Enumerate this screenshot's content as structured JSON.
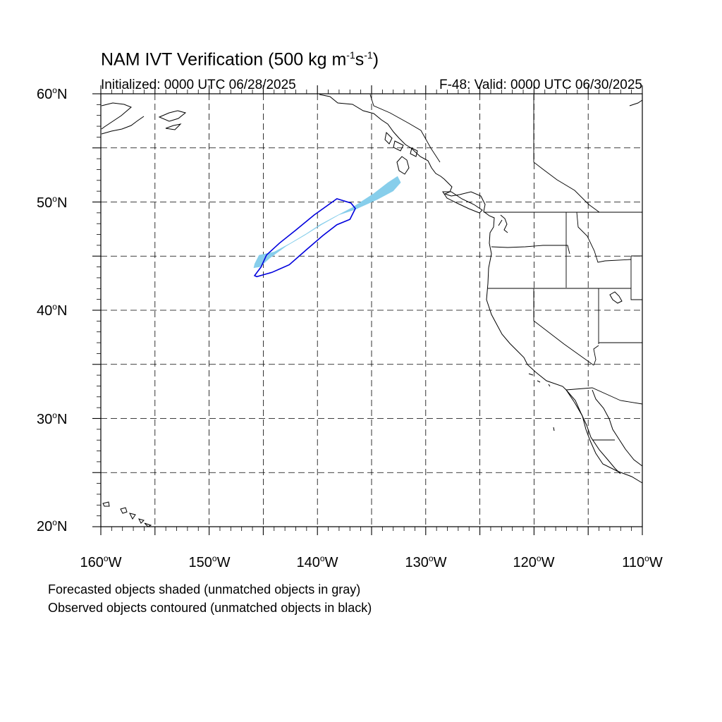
{
  "title": {
    "main": "NAM IVT Verification (500 kg m",
    "sup1": "-1",
    "mid": "s",
    "sup2": "-1",
    "end": ")"
  },
  "initialized": "Initialized: 0000 UTC 06/28/2025",
  "valid": "F-48: Valid: 0000 UTC 06/30/2025",
  "degree_symbol": "o",
  "lat_labels": [
    {
      "num": "60",
      "hem": "N"
    },
    {
      "num": "50",
      "hem": "N"
    },
    {
      "num": "40",
      "hem": "N"
    },
    {
      "num": "30",
      "hem": "N"
    },
    {
      "num": "20",
      "hem": "N"
    }
  ],
  "lon_labels": [
    {
      "num": "160",
      "hem": "W"
    },
    {
      "num": "150",
      "hem": "W"
    },
    {
      "num": "140",
      "hem": "W"
    },
    {
      "num": "130",
      "hem": "W"
    },
    {
      "num": "120",
      "hem": "W"
    },
    {
      "num": "110",
      "hem": "W"
    }
  ],
  "footnotes": [
    "Forecasted objects shaded (unmatched objects in gray)",
    "Observed objects contoured (unmatched objects in black)"
  ],
  "colors": {
    "forecast_fill": "#87ceeb",
    "observed_contour": "#0000dd",
    "coastline": "#000000",
    "grid": "#000000"
  },
  "map_extent": {
    "lon": [
      -160,
      -110
    ],
    "lat": [
      20,
      60
    ]
  },
  "grid": {
    "lon_step": 5,
    "lat_step": 5,
    "style": "dashed"
  },
  "forecast_object": {
    "lonlat": [
      [
        -145.8,
        44.3
      ],
      [
        -145.4,
        45.1
      ],
      [
        -144.0,
        45.4
      ],
      [
        -142.5,
        46.2
      ],
      [
        -141.0,
        47.1
      ],
      [
        -139.8,
        47.9
      ],
      [
        -138.5,
        48.6
      ],
      [
        -136.8,
        49.5
      ],
      [
        -134.8,
        50.8
      ],
      [
        -133.5,
        51.8
      ],
      [
        -132.6,
        52.4
      ],
      [
        -132.3,
        51.8
      ],
      [
        -133.0,
        51.0
      ],
      [
        -134.5,
        50.2
      ],
      [
        -136.5,
        49.3
      ],
      [
        -138.0,
        48.8
      ],
      [
        -139.6,
        47.9
      ],
      [
        -141.2,
        46.9
      ],
      [
        -142.9,
        45.9
      ],
      [
        -144.4,
        44.8
      ],
      [
        -145.3,
        44.0
      ],
      [
        -145.9,
        43.9
      ]
    ]
  },
  "observed_object": {
    "lonlat": [
      [
        -145.8,
        43.2
      ],
      [
        -145.2,
        44.0
      ],
      [
        -144.7,
        45.1
      ],
      [
        -143.5,
        46.2
      ],
      [
        -142.0,
        47.4
      ],
      [
        -140.3,
        48.8
      ],
      [
        -138.2,
        50.3
      ],
      [
        -136.9,
        49.9
      ],
      [
        -136.5,
        49.4
      ],
      [
        -137.0,
        48.4
      ],
      [
        -138.2,
        47.9
      ],
      [
        -139.5,
        46.9
      ],
      [
        -141.0,
        45.6
      ],
      [
        -142.6,
        44.2
      ],
      [
        -144.2,
        43.5
      ],
      [
        -145.6,
        43.1
      ]
    ]
  }
}
